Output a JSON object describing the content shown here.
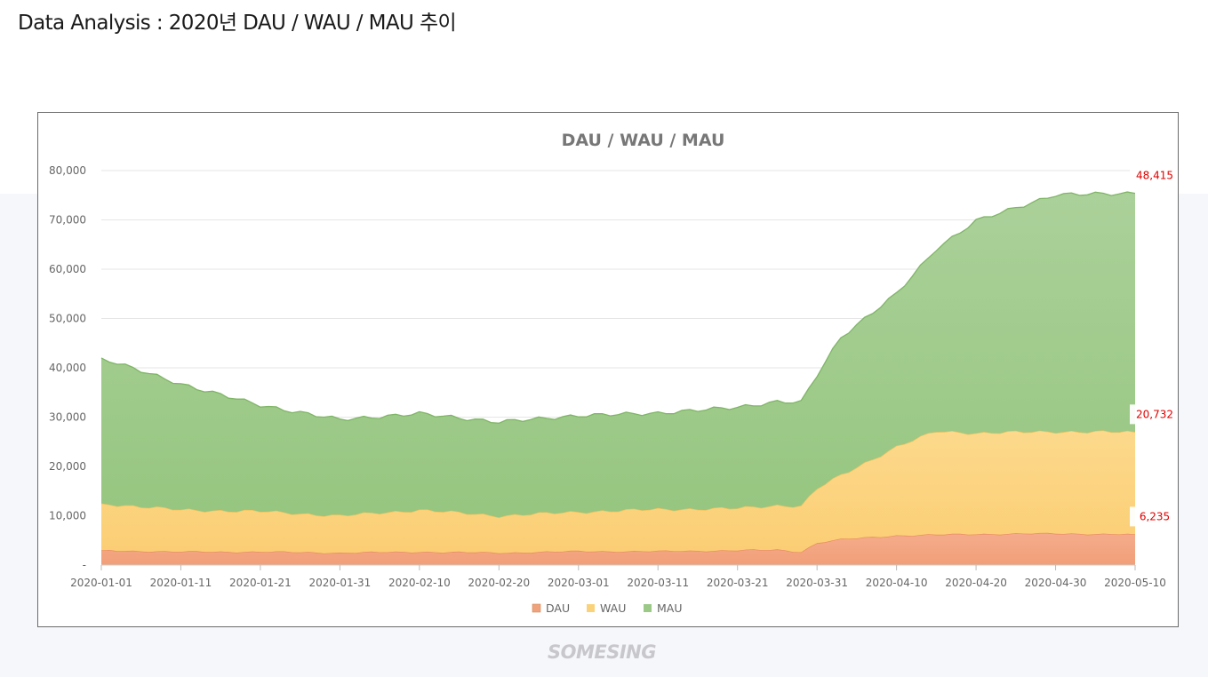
{
  "page": {
    "title": "Data Analysis : 2020년 DAU / WAU / MAU 추이"
  },
  "logo": {
    "text": "SOMESING"
  },
  "colors": {
    "dau": "#f0a27c",
    "wau": "#fbd27c",
    "mau": "#9cc987",
    "label_text": "#e00000",
    "axis_text": "#666666",
    "grid": "#e6e6e6"
  },
  "chart_data": {
    "type": "area",
    "stacked": true,
    "title": "DAU / WAU / MAU",
    "xlabel": "",
    "ylabel": "",
    "ylim": [
      0,
      80000
    ],
    "yticks": [
      "-",
      "10,000",
      "20,000",
      "30,000",
      "40,000",
      "50,000",
      "60,000",
      "70,000",
      "80,000"
    ],
    "xticks": [
      "2020-01-01",
      "2020-01-11",
      "2020-01-21",
      "2020-01-31",
      "2020-02-10",
      "2020-02-20",
      "2020-03-01",
      "2020-03-11",
      "2020-03-21",
      "2020-03-31",
      "2020-04-10",
      "2020-04-20",
      "2020-04-30",
      "2020-05-10"
    ],
    "x_start": "2020-01-01",
    "x_end": "2020-05-10",
    "legend": "bottom",
    "grid": true,
    "series": [
      {
        "name": "DAU",
        "points": [
          [
            "2020-01-01",
            3000
          ],
          [
            "2020-01-11",
            2700
          ],
          [
            "2020-01-21",
            2700
          ],
          [
            "2020-01-31",
            2500
          ],
          [
            "2020-02-10",
            2700
          ],
          [
            "2020-02-20",
            2500
          ],
          [
            "2020-03-01",
            2800
          ],
          [
            "2020-03-11",
            2800
          ],
          [
            "2020-03-21",
            3000
          ],
          [
            "2020-03-26",
            3100
          ],
          [
            "2020-03-29",
            2700
          ],
          [
            "2020-03-31",
            4500
          ],
          [
            "2020-04-03",
            5200
          ],
          [
            "2020-04-10",
            6000
          ],
          [
            "2020-04-20",
            6300
          ],
          [
            "2020-04-30",
            6400
          ],
          [
            "2020-05-10",
            6235
          ]
        ],
        "end_label": "6,235"
      },
      {
        "name": "WAU",
        "points": [
          [
            "2020-01-01",
            9500
          ],
          [
            "2020-01-11",
            8500
          ],
          [
            "2020-01-21",
            8200
          ],
          [
            "2020-01-31",
            7500
          ],
          [
            "2020-02-10",
            8500
          ],
          [
            "2020-02-20",
            7500
          ],
          [
            "2020-03-01",
            8000
          ],
          [
            "2020-03-11",
            8500
          ],
          [
            "2020-03-21",
            8500
          ],
          [
            "2020-03-26",
            9000
          ],
          [
            "2020-03-29",
            9300
          ],
          [
            "2020-03-31",
            11000
          ],
          [
            "2020-04-03",
            13000
          ],
          [
            "2020-04-10",
            18000
          ],
          [
            "2020-04-15",
            21000
          ],
          [
            "2020-04-20",
            20500
          ],
          [
            "2020-04-30",
            20700
          ],
          [
            "2020-05-10",
            20732
          ]
        ],
        "end_label": "20,732"
      },
      {
        "name": "MAU",
        "points": [
          [
            "2020-01-01",
            29500
          ],
          [
            "2020-01-11",
            25500
          ],
          [
            "2020-01-21",
            21500
          ],
          [
            "2020-01-31",
            19500
          ],
          [
            "2020-02-10",
            19500
          ],
          [
            "2020-02-20",
            19000
          ],
          [
            "2020-03-01",
            19500
          ],
          [
            "2020-03-11",
            19500
          ],
          [
            "2020-03-21",
            20500
          ],
          [
            "2020-03-26",
            21000
          ],
          [
            "2020-03-29",
            21000
          ],
          [
            "2020-03-31",
            23000
          ],
          [
            "2020-04-03",
            28000
          ],
          [
            "2020-04-10",
            31000
          ],
          [
            "2020-04-15",
            37000
          ],
          [
            "2020-04-20",
            43000
          ],
          [
            "2020-04-30",
            48000
          ],
          [
            "2020-05-10",
            48415
          ]
        ],
        "end_label": "48,415"
      }
    ]
  }
}
